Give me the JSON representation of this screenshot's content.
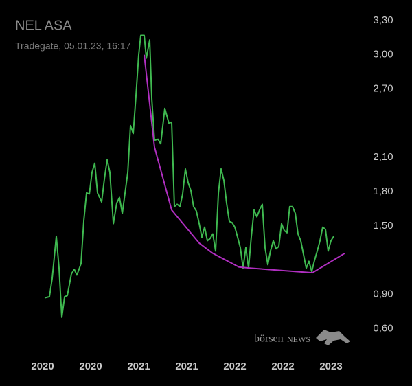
{
  "chart_data": {
    "type": "line",
    "title": "NEL ASA",
    "subtitle": "Tradegate, 05.01.23, 16:17",
    "watermark": {
      "prefix": "börsen",
      "suffix": "NEWS"
    },
    "xlim": [
      2019.557,
      2023.3
    ],
    "ylim": [
      0.35,
      3.48
    ],
    "grid": false,
    "xticks": [
      {
        "value": 2020.0,
        "label": "2020"
      },
      {
        "value": 2020.5,
        "label": "2020"
      },
      {
        "value": 2021.0,
        "label": "2021"
      },
      {
        "value": 2021.5,
        "label": "2021"
      },
      {
        "value": 2022.0,
        "label": "2022"
      },
      {
        "value": 2022.5,
        "label": "2022"
      },
      {
        "value": 2023.0,
        "label": "2023"
      }
    ],
    "yticks": [
      {
        "value": 3.3,
        "label": "3,30"
      },
      {
        "value": 3.0,
        "label": "3,00"
      },
      {
        "value": 2.7,
        "label": "2,70"
      },
      {
        "value": 2.1,
        "label": "2,10"
      },
      {
        "value": 1.8,
        "label": "1,80"
      },
      {
        "value": 1.5,
        "label": "1,50"
      },
      {
        "value": 0.9,
        "label": "0,90"
      },
      {
        "value": 0.6,
        "label": "0,60"
      }
    ],
    "series": [
      {
        "color": "#3fb950",
        "x": [
          2020.021,
          2020.071,
          2020.1,
          2020.143,
          2020.171,
          2020.2,
          2020.229,
          2020.257,
          2020.3,
          2020.329,
          2020.357,
          2020.4,
          2020.429,
          2020.457,
          2020.486,
          2020.514,
          2020.543,
          2020.571,
          2020.614,
          2020.643,
          2020.671,
          2020.7,
          2020.736,
          2020.771,
          2020.8,
          2020.829,
          2020.886,
          2020.914,
          2020.943,
          2020.971,
          2021.0,
          2021.021,
          2021.057,
          2021.079,
          2021.114,
          2021.136,
          2021.164,
          2021.2,
          2021.229,
          2021.271,
          2021.314,
          2021.343,
          2021.371,
          2021.4,
          2021.429,
          2021.457,
          2021.486,
          2021.514,
          2021.543,
          2021.571,
          2021.6,
          2021.629,
          2021.657,
          2021.686,
          2021.714,
          2021.743,
          2021.771,
          2021.8,
          2021.829,
          2021.857,
          2021.886,
          2021.914,
          2021.943,
          2021.971,
          2022.0,
          2022.029,
          2022.057,
          2022.086,
          2022.114,
          2022.143,
          2022.171,
          2022.2,
          2022.229,
          2022.257,
          2022.286,
          2022.314,
          2022.343,
          2022.371,
          2022.4,
          2022.429,
          2022.457,
          2022.486,
          2022.514,
          2022.543,
          2022.571,
          2022.6,
          2022.629,
          2022.657,
          2022.686,
          2022.714,
          2022.743,
          2022.771,
          2022.8,
          2022.829,
          2022.857,
          2022.886,
          2022.914,
          2022.943,
          2022.971,
          2023.0,
          2023.029
        ],
        "values": [
          0.87,
          0.88,
          1.04,
          1.41,
          1.13,
          0.7,
          0.88,
          0.89,
          1.08,
          1.12,
          1.07,
          1.17,
          1.55,
          1.79,
          1.78,
          1.97,
          2.05,
          1.79,
          1.71,
          1.91,
          2.08,
          1.97,
          1.52,
          1.7,
          1.75,
          1.61,
          1.97,
          2.38,
          2.31,
          2.64,
          3.0,
          3.17,
          3.17,
          2.97,
          3.13,
          2.61,
          2.25,
          2.26,
          2.22,
          2.53,
          2.4,
          2.41,
          1.67,
          1.69,
          1.67,
          1.78,
          2.0,
          1.88,
          1.81,
          1.67,
          1.63,
          1.52,
          1.4,
          1.49,
          1.37,
          1.39,
          1.43,
          1.28,
          1.79,
          2.0,
          1.9,
          1.7,
          1.54,
          1.53,
          1.49,
          1.4,
          1.31,
          1.13,
          1.31,
          1.13,
          1.4,
          1.64,
          1.58,
          1.64,
          1.69,
          1.31,
          1.16,
          1.28,
          1.37,
          1.3,
          1.32,
          1.52,
          1.46,
          1.44,
          1.67,
          1.67,
          1.61,
          1.43,
          1.37,
          1.25,
          1.13,
          1.19,
          1.1,
          1.2,
          1.28,
          1.37,
          1.49,
          1.47,
          1.28,
          1.37,
          1.41
        ]
      },
      {
        "color": "#b02fc0",
        "x": [
          2021.057,
          2021.164,
          2021.343,
          2021.629,
          2021.771,
          2022.043,
          2022.164,
          2022.807,
          2023.143
        ],
        "values": [
          3.0,
          2.19,
          1.64,
          1.35,
          1.26,
          1.14,
          1.13,
          1.09,
          1.26
        ]
      }
    ]
  }
}
